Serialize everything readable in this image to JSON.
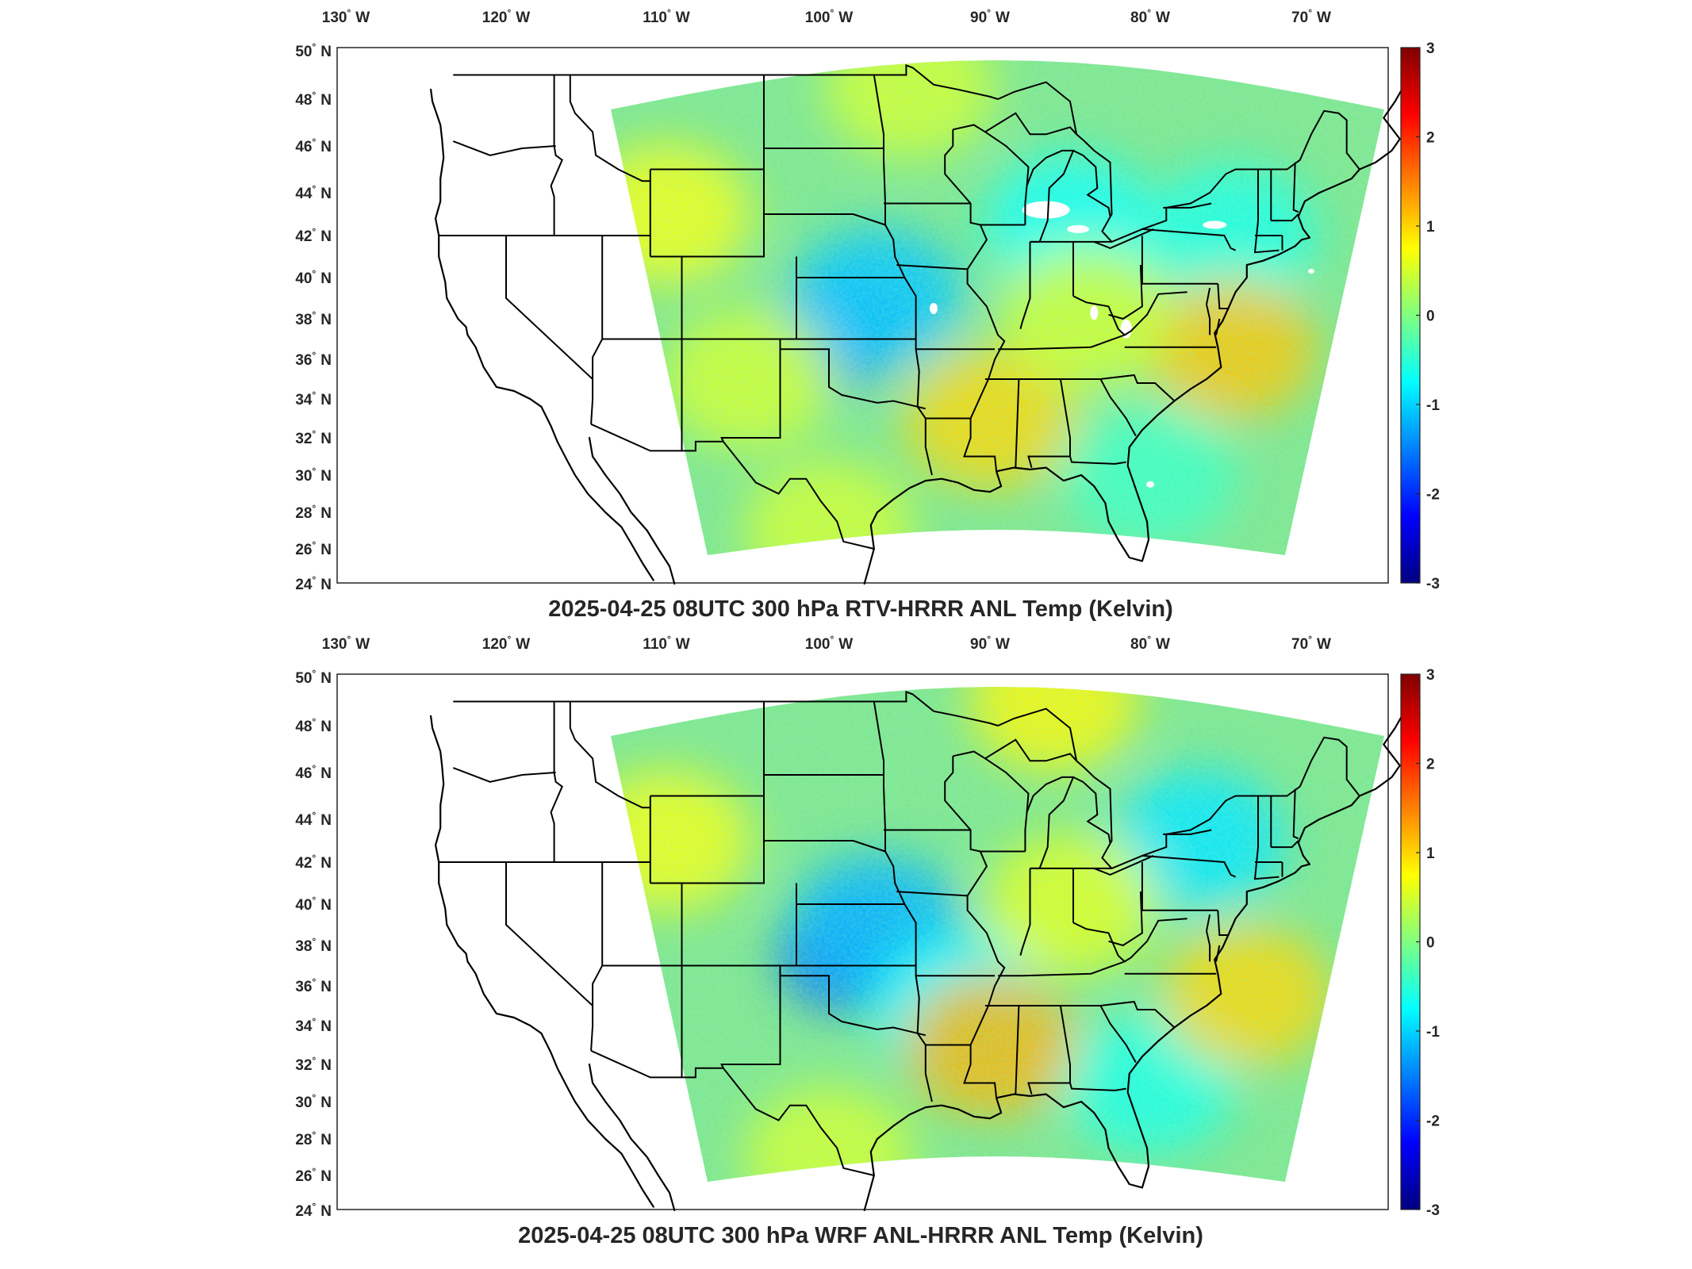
{
  "figure": {
    "colorbar": {
      "ticks": [
        "3",
        "2",
        "1",
        "0",
        "-1",
        "-2",
        "-3"
      ],
      "range": [
        -3,
        3
      ],
      "colormap": "jet",
      "colors": [
        "#00007f",
        "#0000ff",
        "#007fff",
        "#00ffff",
        "#7fff7f",
        "#ffff00",
        "#ff7f00",
        "#ff0000",
        "#7f0000"
      ]
    },
    "lon_labels": [
      {
        "deg": "130",
        "hemi": "W"
      },
      {
        "deg": "120",
        "hemi": "W"
      },
      {
        "deg": "110",
        "hemi": "W"
      },
      {
        "deg": "100",
        "hemi": "W"
      },
      {
        "deg": "90",
        "hemi": "W"
      },
      {
        "deg": "80",
        "hemi": "W"
      },
      {
        "deg": "70",
        "hemi": "W"
      }
    ],
    "lat_labels": [
      {
        "deg": "50",
        "hemi": "N"
      },
      {
        "deg": "48",
        "hemi": "N"
      },
      {
        "deg": "46",
        "hemi": "N"
      },
      {
        "deg": "44",
        "hemi": "N"
      },
      {
        "deg": "42",
        "hemi": "N"
      },
      {
        "deg": "40",
        "hemi": "N"
      },
      {
        "deg": "38",
        "hemi": "N"
      },
      {
        "deg": "36",
        "hemi": "N"
      },
      {
        "deg": "34",
        "hemi": "N"
      },
      {
        "deg": "32",
        "hemi": "N"
      },
      {
        "deg": "30",
        "hemi": "N"
      },
      {
        "deg": "28",
        "hemi": "N"
      },
      {
        "deg": "26",
        "hemi": "N"
      },
      {
        "deg": "24",
        "hemi": "N"
      }
    ],
    "panels": [
      {
        "title": "2025-04-25 08UTC 300 hPa RTV-HRRR ANL Temp (Kelvin)",
        "base_color": "#7fe68c",
        "noise_seed": 11,
        "data_gaps": true,
        "anomalies": [
          {
            "lon": -99,
            "lat": 37.5,
            "value": -1.6
          },
          {
            "lon": -97,
            "lat": 39,
            "value": -1.1
          },
          {
            "lon": -85,
            "lat": 42.5,
            "value": -0.7
          },
          {
            "lon": -75,
            "lat": 42,
            "value": -0.6
          },
          {
            "lon": -75,
            "lat": 36.5,
            "value": 1.1
          },
          {
            "lon": -90,
            "lat": 33,
            "value": 1.0
          },
          {
            "lon": -110,
            "lat": 43,
            "value": 0.7
          },
          {
            "lon": -105,
            "lat": 35,
            "value": 0.5
          },
          {
            "lon": -95,
            "lat": 48.5,
            "value": 0.5
          },
          {
            "lon": -84,
            "lat": 38,
            "value": 0.5
          },
          {
            "lon": -80,
            "lat": 30,
            "value": -0.4
          },
          {
            "lon": -100,
            "lat": 27,
            "value": 0.5
          }
        ]
      },
      {
        "title": "2025-04-25 08UTC 300 hPa WRF ANL-HRRR ANL Temp (Kelvin)",
        "base_color": "#7fe68c",
        "noise_seed": 29,
        "data_gaps": false,
        "anomalies": [
          {
            "lon": -99,
            "lat": 37.5,
            "value": -1.8
          },
          {
            "lon": -97,
            "lat": 39,
            "value": -1.2
          },
          {
            "lon": -92,
            "lat": 35,
            "value": -0.8
          },
          {
            "lon": -77,
            "lat": 43,
            "value": -0.9
          },
          {
            "lon": -80,
            "lat": 31,
            "value": -0.6
          },
          {
            "lon": -74,
            "lat": 35.5,
            "value": 1.0
          },
          {
            "lon": -90,
            "lat": 33,
            "value": 1.2
          },
          {
            "lon": -110,
            "lat": 43,
            "value": 0.7
          },
          {
            "lon": -86,
            "lat": 49,
            "value": 0.8
          },
          {
            "lon": -85,
            "lat": 40,
            "value": 0.6
          },
          {
            "lon": -100,
            "lat": 27,
            "value": 0.5
          }
        ]
      }
    ]
  }
}
